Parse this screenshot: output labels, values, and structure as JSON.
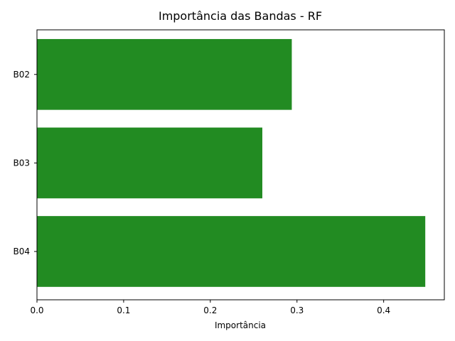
{
  "chart_data": {
    "type": "bar",
    "orientation": "horizontal",
    "title": "Importância das Bandas - RF",
    "xlabel": "Importância",
    "ylabel": "",
    "categories": [
      "B02",
      "B03",
      "B04"
    ],
    "values": [
      0.294,
      0.26,
      0.448
    ],
    "xlim": [
      0,
      0.47
    ],
    "xticks": [
      0.0,
      0.1,
      0.2,
      0.3,
      0.4
    ],
    "xtick_labels": [
      "0.0",
      "0.1",
      "0.2",
      "0.3",
      "0.4"
    ],
    "bar_color": "#228b22",
    "grid": false,
    "legend": "none"
  }
}
